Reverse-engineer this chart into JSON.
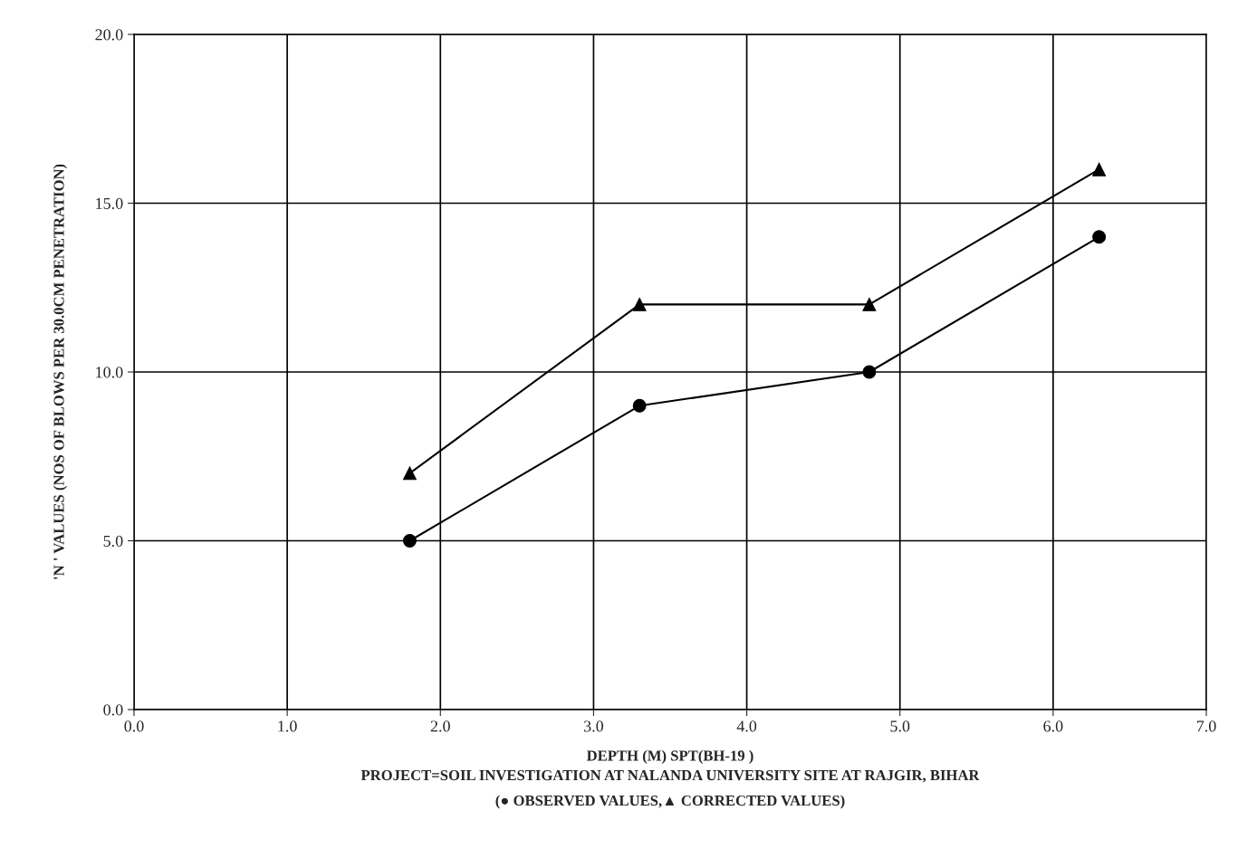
{
  "chart_data": {
    "type": "line",
    "xlabel": "DEPTH (M) SPT(BH-19 )",
    "ylabel": "'N ' VALUES (NOS OF BLOWS PER 30.0CM PENETRATION)",
    "annotations": [
      "PROJECT=SOIL INVESTIGATION AT NALANDA UNIVERSITY SITE AT RAJGIR, BIHAR",
      "(● OBSERVED VALUES,▲ CORRECTED VALUES)"
    ],
    "x": [
      1.8,
      3.3,
      4.8,
      6.3
    ],
    "series": [
      {
        "color": "#000000",
        "marker": "circle",
        "values": [
          5,
          9,
          10,
          14
        ]
      },
      {
        "color": "#000000",
        "marker": "triangle",
        "values": [
          7,
          12,
          12,
          16
        ]
      }
    ],
    "xlim": [
      0,
      7
    ],
    "xticks": [
      {
        "value": 0,
        "label": "0.0"
      },
      {
        "value": 1,
        "label": "1.0"
      },
      {
        "value": 2,
        "label": "2.0"
      },
      {
        "value": 3,
        "label": "3.0"
      },
      {
        "value": 4,
        "label": "4.0"
      },
      {
        "value": 5,
        "label": "5.0"
      },
      {
        "value": 6,
        "label": "6.0"
      },
      {
        "value": 7,
        "label": "7.0"
      }
    ],
    "ylim": [
      0,
      20
    ],
    "yticks": [
      {
        "value": 0,
        "label": "0.0"
      },
      {
        "value": 5,
        "label": "5.0"
      },
      {
        "value": 10,
        "label": "10.0"
      },
      {
        "value": 15,
        "label": "15.0"
      },
      {
        "value": 20,
        "label": "20.0"
      }
    ],
    "grid": true,
    "line_style": "solid"
  }
}
